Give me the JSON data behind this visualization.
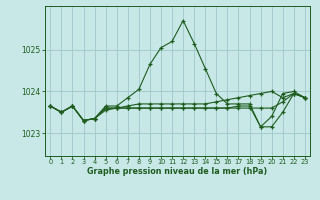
{
  "background_color": "#c8e8e8",
  "grid_color": "#a0c8c8",
  "line_color": "#1e5c1e",
  "xlabel": "Graphe pression niveau de la mer (hPa)",
  "x_ticks": [
    0,
    1,
    2,
    3,
    4,
    5,
    6,
    7,
    8,
    9,
    10,
    11,
    12,
    13,
    14,
    15,
    16,
    17,
    18,
    19,
    20,
    21,
    22,
    23
  ],
  "y_ticks": [
    1023,
    1024,
    1025
  ],
  "ylim": [
    1022.45,
    1026.05
  ],
  "xlim": [
    -0.5,
    23.5
  ],
  "series": [
    [
      1023.65,
      1023.5,
      1023.65,
      1023.3,
      1023.35,
      1023.65,
      1023.65,
      1023.85,
      1024.05,
      1024.65,
      1025.05,
      1025.2,
      1025.7,
      1025.15,
      1024.55,
      1023.95,
      1023.7,
      1023.7,
      1023.7,
      1023.15,
      1023.4,
      1023.95,
      1024.0,
      1023.85
    ],
    [
      1023.65,
      1023.5,
      1023.65,
      1023.3,
      1023.35,
      1023.6,
      1023.6,
      1023.65,
      1023.7,
      1023.7,
      1023.7,
      1023.7,
      1023.7,
      1023.7,
      1023.7,
      1023.75,
      1023.8,
      1023.85,
      1023.9,
      1023.95,
      1024.0,
      1023.85,
      1023.95,
      1023.85
    ],
    [
      1023.65,
      1023.5,
      1023.65,
      1023.3,
      1023.35,
      1023.6,
      1023.6,
      1023.6,
      1023.6,
      1023.6,
      1023.6,
      1023.6,
      1023.6,
      1023.6,
      1023.6,
      1023.6,
      1023.6,
      1023.65,
      1023.65,
      1023.15,
      1023.15,
      1023.5,
      1023.95,
      1023.85
    ],
    [
      1023.65,
      1023.5,
      1023.65,
      1023.3,
      1023.35,
      1023.55,
      1023.6,
      1023.6,
      1023.6,
      1023.6,
      1023.6,
      1023.6,
      1023.6,
      1023.6,
      1023.6,
      1023.6,
      1023.6,
      1023.6,
      1023.6,
      1023.6,
      1023.6,
      1023.75,
      1023.95,
      1023.85
    ]
  ]
}
